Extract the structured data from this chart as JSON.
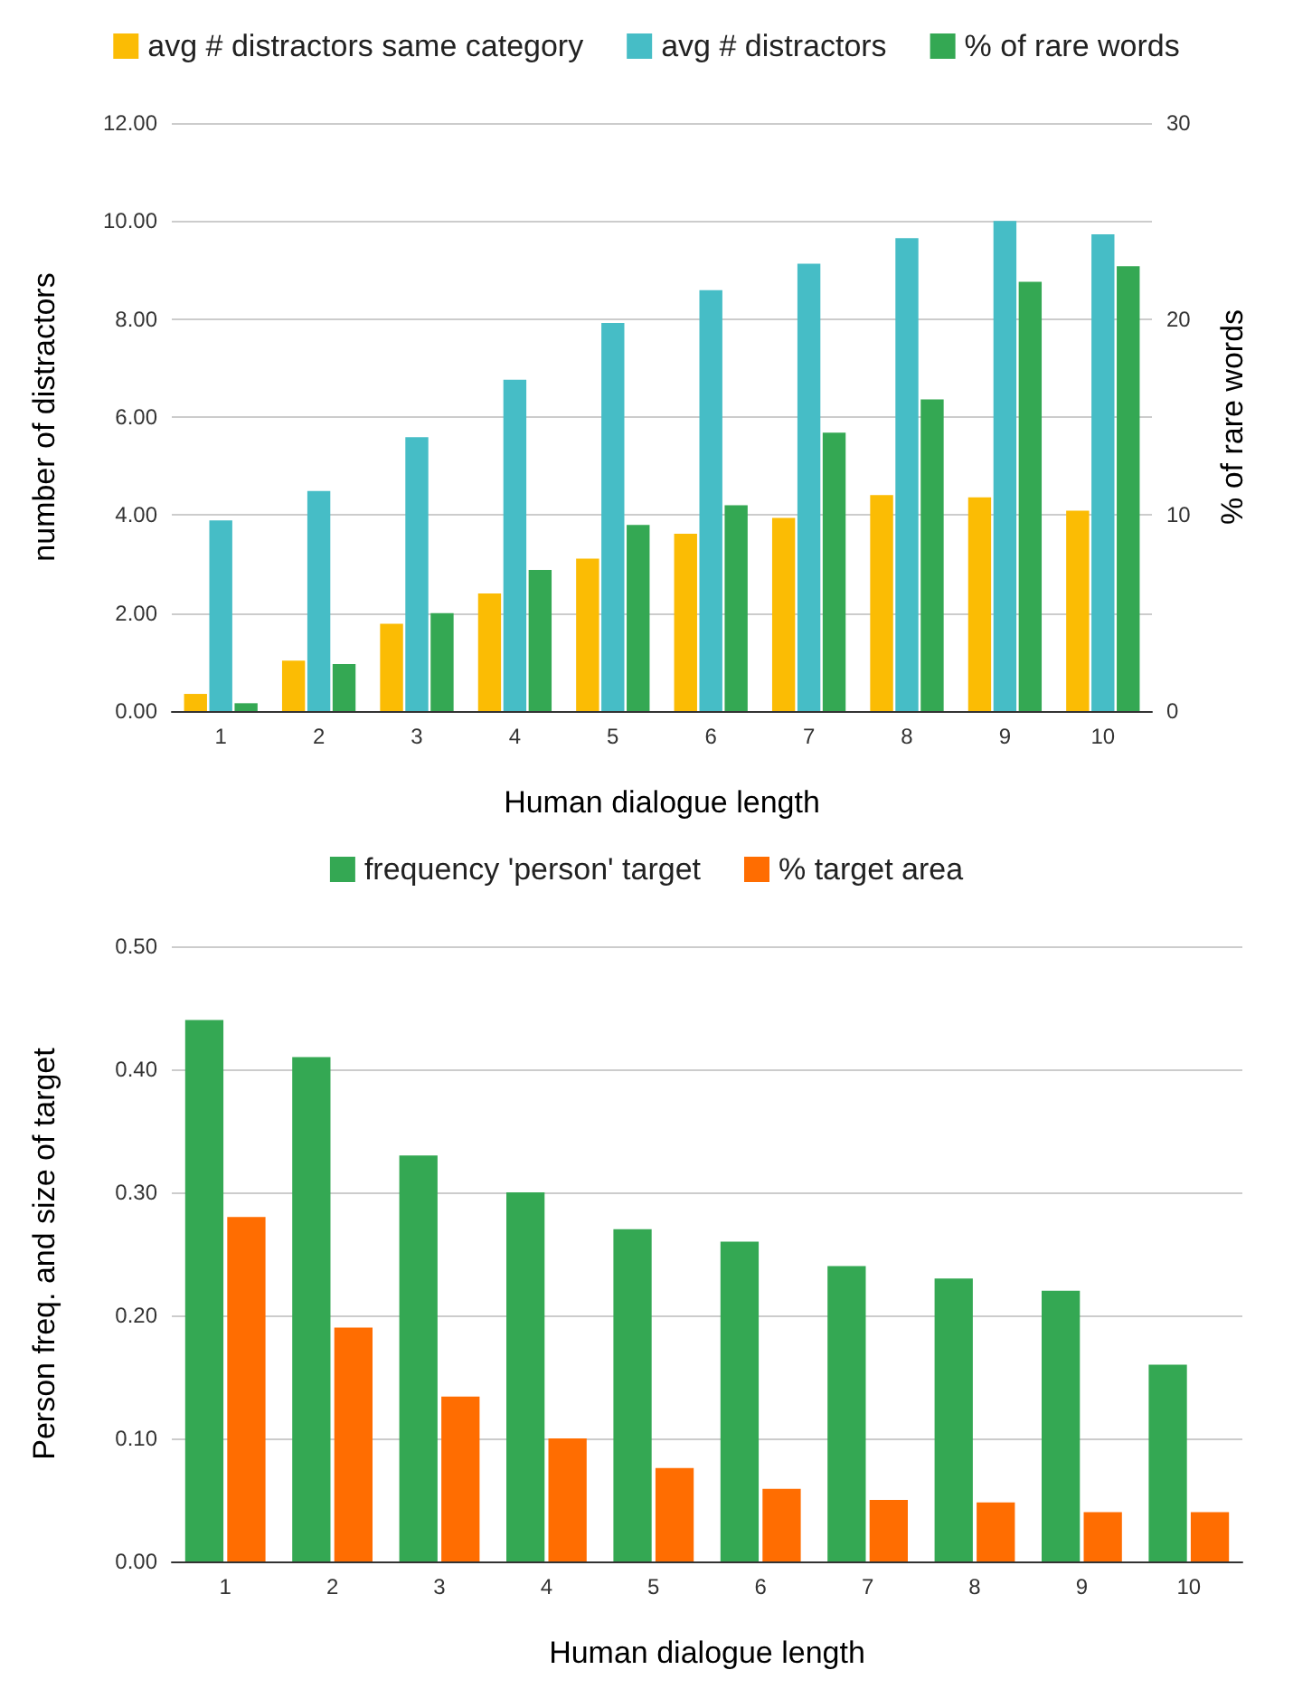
{
  "chart_data": [
    {
      "type": "bar",
      "xlabel": "Human dialogue length",
      "ylabel": "number of distractors",
      "y2label": "% of rare words",
      "categories": [
        "1",
        "2",
        "3",
        "4",
        "5",
        "6",
        "7",
        "8",
        "9",
        "10"
      ],
      "series": [
        {
          "name": "avg # distractors same category",
          "color": "#fbbc04",
          "values": [
            0.35,
            1.03,
            1.78,
            2.4,
            3.11,
            3.62,
            3.94,
            4.41,
            4.36,
            4.09
          ]
        },
        {
          "name": "avg # distractors",
          "color": "#46bdc6",
          "values": [
            3.89,
            4.49,
            5.59,
            6.76,
            7.92,
            8.59,
            9.13,
            9.65,
            10.0,
            9.73
          ]
        },
        {
          "name": "% of rare words",
          "color": "#34a853",
          "axis": "y2",
          "values": [
            0.4,
            2.4,
            5.0,
            7.2,
            9.5,
            10.5,
            14.2,
            15.9,
            21.9,
            22.7
          ]
        }
      ],
      "ylim": [
        0,
        12
      ],
      "yticks": [
        {
          "value": 0,
          "label": "0.00"
        },
        {
          "value": 2,
          "label": "2.00"
        },
        {
          "value": 4,
          "label": "4.00"
        },
        {
          "value": 6,
          "label": "6.00"
        },
        {
          "value": 8,
          "label": "8.00"
        },
        {
          "value": 10,
          "label": "10.00"
        },
        {
          "value": 12,
          "label": "12.00"
        }
      ],
      "y2lim": [
        0,
        30
      ],
      "y2ticks": [
        0,
        10,
        20,
        30
      ],
      "grid": "y",
      "legend": "top"
    },
    {
      "type": "bar",
      "xlabel": "Human dialogue length",
      "ylabel": "Person freq. and size of target",
      "categories": [
        "1",
        "2",
        "3",
        "4",
        "5",
        "6",
        "7",
        "8",
        "9",
        "10"
      ],
      "series": [
        {
          "name": "frequency 'person' target",
          "color": "#34a853",
          "values": [
            0.44,
            0.41,
            0.33,
            0.3,
            0.27,
            0.26,
            0.24,
            0.23,
            0.22,
            0.16
          ]
        },
        {
          "name": "% target area",
          "color": "#ff6d01",
          "values": [
            0.28,
            0.19,
            0.134,
            0.1,
            0.076,
            0.059,
            0.05,
            0.048,
            0.04,
            0.04
          ]
        }
      ],
      "ylim": [
        0,
        0.5
      ],
      "yticks": [
        {
          "value": 0,
          "label": "0.00"
        },
        {
          "value": 0.1,
          "label": "0.10"
        },
        {
          "value": 0.2,
          "label": "0.20"
        },
        {
          "value": 0.3,
          "label": "0.30"
        },
        {
          "value": 0.4,
          "label": "0.40"
        },
        {
          "value": 0.5,
          "label": "0.50"
        }
      ],
      "grid": "y",
      "legend": "top"
    }
  ]
}
